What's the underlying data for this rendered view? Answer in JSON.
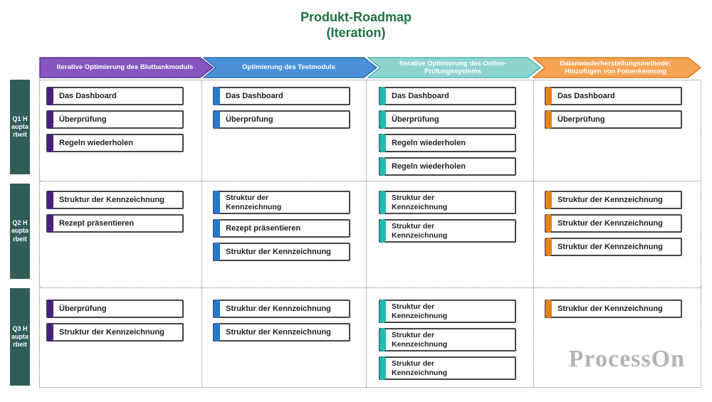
{
  "title": {
    "line1": "Produkt-Roadmap",
    "line2": "(Iteration)"
  },
  "watermark": "ProcessOn",
  "colors": {
    "title_green": "#1d7044",
    "row_label_bg": "#315d58",
    "card_border": "#454545",
    "grid_dotted": "#787878",
    "watermark_gray": "#b3b3b3",
    "columns": [
      {
        "header_fill": "#8655bd",
        "header_border": "#5b2d91",
        "accent": "#45217e"
      },
      {
        "header_fill": "#4a90d9",
        "header_border": "#2e6db3",
        "accent": "#2478d4"
      },
      {
        "header_fill": "#8fd3cf",
        "header_border": "#4db8b2",
        "accent": "#1fbdb5"
      },
      {
        "header_fill": "#f7a454",
        "header_border": "#e07b1f",
        "accent": "#e8821e"
      }
    ]
  },
  "headers": [
    "Iterative Optimierung des Blutbankmoduls",
    "Optimierung des Testmoduls",
    "Iterative Optimierung des Online-Prüfungssystems",
    "Datenwiederherstellungsmethode: Hinzufügen von Fotoerkennung"
  ],
  "row_labels": [
    "Q1 Hauptarbeit",
    "Q2 Hauptarbeit",
    "Q3 Hauptarbeit"
  ],
  "rows": [
    {
      "cells": [
        [
          {
            "label": "Das Dashboard"
          },
          {
            "label": "Überprüfung"
          },
          {
            "label": "Regeln wiederholen"
          }
        ],
        [
          {
            "label": "Das Dashboard"
          },
          {
            "label": "Überprüfung"
          }
        ],
        [
          {
            "label": "Das Dashboard"
          },
          {
            "label": "Überprüfung"
          },
          {
            "label": "Regeln wiederholen"
          },
          {
            "label": "Regeln wiederholen"
          }
        ],
        [
          {
            "label": "Das Dashboard"
          },
          {
            "label": "Überprüfung"
          }
        ]
      ]
    },
    {
      "cells": [
        [
          {
            "label": "Struktur der Kennzeichnung"
          },
          {
            "label": "Rezept präsentieren"
          }
        ],
        [
          {
            "label": "Struktur der Kennzeichnung",
            "wrap": true
          },
          {
            "label": "Rezept präsentieren"
          },
          {
            "label": "Struktur der Kennzeichnung"
          }
        ],
        [
          {
            "label": "Struktur der Kennzeichnung",
            "wrap": true
          },
          {
            "label": "Struktur der Kennzeichnung",
            "wrap": true
          }
        ],
        [
          {
            "label": "Struktur der Kennzeichnung"
          },
          {
            "label": "Struktur der Kennzeichnung"
          },
          {
            "label": "Struktur der Kennzeichnung"
          }
        ]
      ]
    },
    {
      "cells": [
        [
          {
            "label": "Überprüfung"
          },
          {
            "label": "Struktur der Kennzeichnung"
          }
        ],
        [
          {
            "label": "Struktur der Kennzeichnung"
          },
          {
            "label": "Struktur der Kennzeichnung"
          }
        ],
        [
          {
            "label": "Struktur der Kennzeichnung",
            "wrap": true
          },
          {
            "label": "Struktur der Kennzeichnung",
            "wrap": true
          },
          {
            "label": "Struktur der Kennzeichnung",
            "wrap": true
          }
        ],
        [
          {
            "label": "Struktur der Kennzeichnung"
          }
        ]
      ]
    }
  ]
}
